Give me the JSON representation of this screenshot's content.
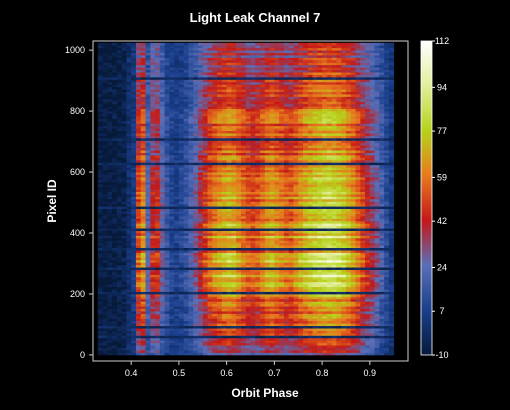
{
  "chart_data": {
    "type": "heatmap",
    "title": "Light Leak Channel 7",
    "xlabel": "Orbit Phase",
    "ylabel": "Pixel ID",
    "xlim": [
      0.32,
      0.98
    ],
    "ylim": [
      -20,
      1030
    ],
    "xticks": [
      0.4,
      0.5,
      0.6,
      0.7,
      0.8,
      0.9
    ],
    "xtick_labels": [
      "0.4",
      "0.5",
      "0.6",
      "0.7",
      "0.8",
      "0.9"
    ],
    "yticks": [
      0,
      200,
      400,
      600,
      800,
      1000
    ],
    "ytick_labels": [
      "0",
      "200",
      "400",
      "600",
      "800",
      "1000"
    ],
    "data_extent": {
      "x": [
        0.33,
        0.95
      ],
      "y": [
        0,
        1024
      ]
    },
    "colorbar": {
      "min": -10,
      "max": 112,
      "ticks": [
        -10,
        7,
        24,
        42,
        59,
        77,
        94,
        112
      ],
      "tick_labels": [
        "-10",
        "7",
        "24",
        "42",
        "59",
        "77",
        "94",
        "112"
      ],
      "colorscale": [
        "#071a3a",
        "#1a3f8c",
        "#5a6fb8",
        "#c41818",
        "#e87a1e",
        "#b6d21a",
        "#e2ef9a",
        "#ffffff"
      ]
    },
    "column_profile": {
      "x": [
        0.335,
        0.36,
        0.385,
        0.41,
        0.42,
        0.432,
        0.45,
        0.47,
        0.49,
        0.51,
        0.53,
        0.55,
        0.57,
        0.59,
        0.61,
        0.63,
        0.65,
        0.67,
        0.69,
        0.71,
        0.73,
        0.75,
        0.77,
        0.79,
        0.81,
        0.83,
        0.85,
        0.87,
        0.89,
        0.91,
        0.93,
        0.945
      ],
      "value": [
        -8,
        -8,
        -6,
        10,
        108,
        20,
        60,
        22,
        8,
        14,
        28,
        50,
        68,
        78,
        84,
        70,
        58,
        64,
        80,
        72,
        62,
        74,
        86,
        92,
        96,
        94,
        86,
        70,
        52,
        38,
        18,
        6
      ]
    },
    "row_profile": {
      "y": [
        0,
        40,
        80,
        120,
        160,
        200,
        240,
        280,
        320,
        360,
        400,
        440,
        480,
        520,
        560,
        600,
        640,
        680,
        720,
        760,
        800,
        840,
        880,
        920,
        960,
        1000,
        1024
      ],
      "factor": [
        0.4,
        0.55,
        0.62,
        0.72,
        0.68,
        0.78,
        0.88,
        1.0,
        0.9,
        0.86,
        0.92,
        0.86,
        0.9,
        0.82,
        0.78,
        0.8,
        0.76,
        0.74,
        0.78,
        0.74,
        0.7,
        0.68,
        0.6,
        0.56,
        0.52,
        0.48,
        0.46
      ]
    }
  }
}
